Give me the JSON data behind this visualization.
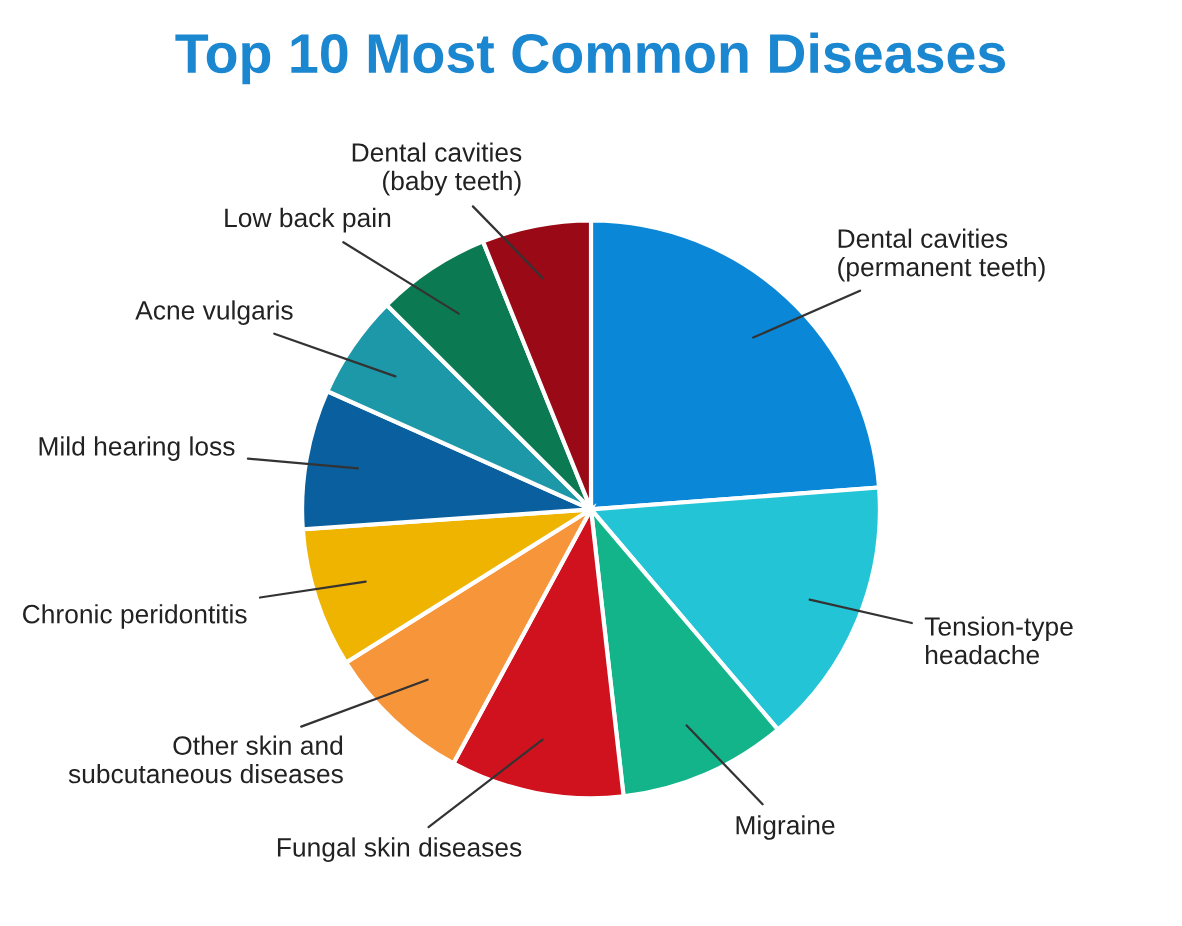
{
  "chart_data": {
    "type": "pie",
    "title": "Top 10 Most Common Diseases",
    "categories": [
      "Dental cavities\n(permanent teeth)",
      "Tension-type\nheadache",
      "Migraine",
      "Fungal skin diseases",
      "Other skin and\nsubcutaneous diseases",
      "Chronic peridontitis",
      "Mild hearing loss",
      "Acne vulgaris",
      "Low back pain",
      "Dental cavities\n(baby teeth)"
    ],
    "values": [
      23.8,
      15,
      9.4,
      9.7,
      8.2,
      7.8,
      7.8,
      5.8,
      6.4,
      6.1
    ],
    "colors": [
      "#0a87d6",
      "#22c4d6",
      "#13b48a",
      "#d0121f",
      "#f6953a",
      "#eeb400",
      "#0a5f9e",
      "#1c98a8",
      "#0b7a52",
      "#9a0a16"
    ]
  }
}
